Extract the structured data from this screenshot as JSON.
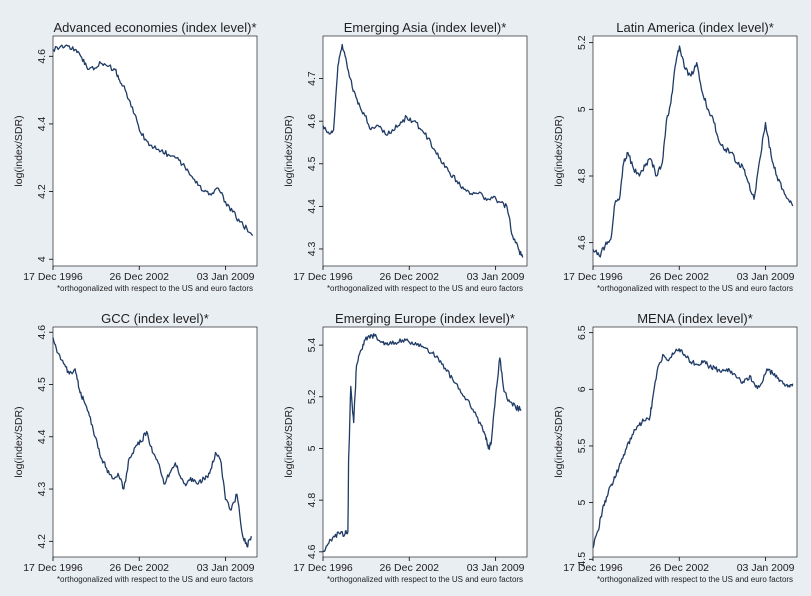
{
  "colors": {
    "page_bg": "#e9eef3",
    "plot_bg": "#ffffff",
    "line": "#1f3b66"
  },
  "chart_data": [
    {
      "type": "line",
      "title": "Advanced economies (index level)*",
      "ylabel": "log(index/SDR)",
      "note": "*orthogonalized with respect to the US and euro factors",
      "x_ticks": [
        "17 Dec 1996",
        "26 Dec 2002",
        "03 Jan 2009"
      ],
      "xlim": [
        1996.96,
        2011.2
      ],
      "y_ticks": [
        "4",
        "4.2",
        "4.4",
        "4.6"
      ],
      "ylim": [
        3.98,
        4.66
      ],
      "series": [
        {
          "x": [
            1996.96,
            1997.5,
            1998.0,
            1998.5,
            1998.9,
            1999.3,
            1999.8,
            2000.3,
            2000.8,
            2001.3,
            2001.6,
            2002.0,
            2002.5,
            2003.0,
            2003.5,
            2004.0,
            2004.5,
            2005.0,
            2005.5,
            2006.0,
            2006.5,
            2007.0,
            2007.5,
            2008.0,
            2008.5,
            2009.0,
            2009.5,
            2010.0,
            2010.5,
            2010.9
          ],
          "y": [
            4.62,
            4.63,
            4.63,
            4.62,
            4.6,
            4.57,
            4.56,
            4.58,
            4.57,
            4.56,
            4.53,
            4.5,
            4.45,
            4.38,
            4.35,
            4.33,
            4.32,
            4.31,
            4.3,
            4.28,
            4.25,
            4.23,
            4.2,
            4.19,
            4.21,
            4.17,
            4.14,
            4.11,
            4.09,
            4.07
          ]
        }
      ]
    },
    {
      "type": "line",
      "title": "Emerging Asia (index level)*",
      "ylabel": "log(index/SDR)",
      "note": "*orthogonalized with respect to the US and euro factors",
      "x_ticks": [
        "17 Dec 1996",
        "26 Dec 2002",
        "03 Jan 2009"
      ],
      "xlim": [
        1996.96,
        2011.2
      ],
      "y_ticks": [
        "4.3",
        "4.4",
        "4.5",
        "4.6",
        "4.7"
      ],
      "ylim": [
        4.26,
        4.8
      ],
      "series": [
        {
          "x": [
            1996.96,
            1997.4,
            1997.7,
            1998.0,
            1998.3,
            1998.6,
            1999.0,
            1999.4,
            1999.8,
            2000.3,
            2000.8,
            2001.3,
            2001.8,
            2002.3,
            2002.8,
            2003.3,
            2003.8,
            2004.3,
            2004.8,
            2005.3,
            2005.8,
            2006.3,
            2006.8,
            2007.3,
            2007.8,
            2008.3,
            2008.8,
            2009.3,
            2009.8,
            2010.2,
            2010.6,
            2010.9
          ],
          "y": [
            4.59,
            4.57,
            4.58,
            4.73,
            4.78,
            4.74,
            4.68,
            4.64,
            4.62,
            4.58,
            4.59,
            4.57,
            4.58,
            4.59,
            4.61,
            4.6,
            4.58,
            4.56,
            4.53,
            4.5,
            4.48,
            4.46,
            4.44,
            4.43,
            4.43,
            4.42,
            4.42,
            4.41,
            4.4,
            4.33,
            4.3,
            4.28
          ]
        }
      ]
    },
    {
      "type": "line",
      "title": "Latin America (index level)*",
      "ylabel": "log(index/SDR)",
      "note": "*orthogonalized with respect to the US and euro factors",
      "x_ticks": [
        "17 Dec 1996",
        "26 Dec 2002",
        "03 Jan 2009"
      ],
      "xlim": [
        1996.96,
        2011.2
      ],
      "y_ticks": [
        "4.6",
        "4.8",
        "5",
        "5.2"
      ],
      "ylim": [
        4.53,
        5.22
      ],
      "series": [
        {
          "x": [
            1996.96,
            1997.4,
            1997.8,
            1998.2,
            1998.5,
            1998.8,
            1999.1,
            1999.4,
            1999.8,
            2000.2,
            2000.6,
            2001.0,
            2001.4,
            2001.8,
            2002.1,
            2002.4,
            2002.7,
            2003.0,
            2003.4,
            2003.8,
            2004.2,
            2004.6,
            2005.0,
            2005.4,
            2005.8,
            2006.2,
            2006.6,
            2007.0,
            2007.4,
            2007.8,
            2008.2,
            2008.6,
            2009.0,
            2009.4,
            2009.8,
            2010.2,
            2010.6,
            2010.9
          ],
          "y": [
            4.58,
            4.56,
            4.59,
            4.61,
            4.72,
            4.73,
            4.84,
            4.87,
            4.82,
            4.8,
            4.83,
            4.85,
            4.8,
            4.84,
            4.97,
            5.02,
            5.13,
            5.19,
            5.12,
            5.1,
            5.14,
            5.05,
            5.0,
            4.96,
            4.9,
            4.88,
            4.87,
            4.84,
            4.83,
            4.78,
            4.73,
            4.85,
            4.96,
            4.86,
            4.8,
            4.76,
            4.73,
            4.71
          ]
        }
      ]
    },
    {
      "type": "line",
      "title": "GCC (index level)*",
      "ylabel": "log(index/SDR)",
      "note": "*orthogonalized with respect to the US and euro factors",
      "x_ticks": [
        "17 Dec 1996",
        "26 Dec 2002",
        "03 Jan 2009"
      ],
      "xlim": [
        1996.96,
        2011.2
      ],
      "y_ticks": [
        "4.2",
        "4.3",
        "4.4",
        "4.5",
        "4.6"
      ],
      "ylim": [
        4.17,
        4.61
      ],
      "series": [
        {
          "x": [
            1996.96,
            1997.3,
            1997.7,
            1998.1,
            1998.5,
            1998.8,
            1999.1,
            1999.5,
            1999.9,
            2000.3,
            2000.7,
            2001.1,
            2001.5,
            2001.9,
            2002.3,
            2002.7,
            2003.1,
            2003.5,
            2003.9,
            2004.3,
            2004.7,
            2005.1,
            2005.5,
            2005.9,
            2006.3,
            2006.7,
            2007.1,
            2007.5,
            2007.9,
            2008.3,
            2008.7,
            2009.0,
            2009.4,
            2009.8,
            2010.2,
            2010.5,
            2010.8
          ],
          "y": [
            4.59,
            4.56,
            4.54,
            4.52,
            4.53,
            4.49,
            4.47,
            4.44,
            4.4,
            4.36,
            4.34,
            4.32,
            4.33,
            4.3,
            4.36,
            4.38,
            4.39,
            4.41,
            4.37,
            4.35,
            4.31,
            4.33,
            4.35,
            4.32,
            4.31,
            4.32,
            4.31,
            4.32,
            4.33,
            4.37,
            4.35,
            4.28,
            4.26,
            4.29,
            4.21,
            4.19,
            4.21
          ]
        }
      ]
    },
    {
      "type": "line",
      "title": "Emerging Europe (index level)*",
      "ylabel": "log(index/SDR)",
      "note": "*orthogonalized with respect to the US and euro factors",
      "x_ticks": [
        "17 Dec 1996",
        "26 Dec 2002",
        "03 Jan 2009"
      ],
      "xlim": [
        1996.96,
        2011.2
      ],
      "y_ticks": [
        "4.6",
        "4.8",
        "5",
        "5.2",
        "5.4"
      ],
      "ylim": [
        4.58,
        5.47
      ],
      "series": [
        {
          "x": [
            1996.96,
            1997.3,
            1997.7,
            1998.1,
            1998.5,
            1998.7,
            1998.75,
            1998.9,
            1999.1,
            1999.3,
            1999.6,
            1999.9,
            2000.3,
            2000.7,
            2001.1,
            2001.5,
            2002.0,
            2002.5,
            2003.0,
            2003.5,
            2004.0,
            2004.5,
            2005.0,
            2005.5,
            2006.0,
            2006.5,
            2007.0,
            2007.5,
            2008.0,
            2008.3,
            2008.5,
            2008.7,
            2009.0,
            2009.3,
            2009.6,
            2010.0,
            2010.4,
            2010.8
          ],
          "y": [
            4.6,
            4.63,
            4.66,
            4.67,
            4.67,
            4.68,
            4.96,
            5.24,
            5.1,
            5.32,
            5.38,
            5.42,
            5.44,
            5.43,
            5.41,
            5.4,
            5.41,
            5.42,
            5.41,
            5.4,
            5.39,
            5.37,
            5.35,
            5.31,
            5.27,
            5.23,
            5.19,
            5.14,
            5.09,
            5.05,
            5.0,
            5.02,
            5.2,
            5.35,
            5.22,
            5.18,
            5.16,
            5.15
          ]
        }
      ]
    },
    {
      "type": "line",
      "title": "MENA (index level)*",
      "ylabel": "log(index/SDR)",
      "note": "*orthogonalized with respect to the US and euro factors",
      "x_ticks": [
        "17 Dec 1996",
        "26 Dec 2002",
        "03 Jan 2009"
      ],
      "xlim": [
        1996.96,
        2011.2
      ],
      "y_ticks": [
        "4.5",
        "5",
        "5.5",
        "6",
        "6.5"
      ],
      "ylim": [
        4.52,
        6.55
      ],
      "series": [
        {
          "x": [
            1996.96,
            1997.3,
            1997.6,
            1997.9,
            1998.2,
            1998.5,
            1998.9,
            1999.3,
            1999.7,
            2000.1,
            2000.5,
            2000.9,
            2001.1,
            2001.5,
            2001.9,
            2002.3,
            2002.7,
            2003.1,
            2003.5,
            2003.9,
            2004.3,
            2004.7,
            2005.1,
            2005.5,
            2005.9,
            2006.3,
            2006.7,
            2007.1,
            2007.5,
            2007.9,
            2008.3,
            2008.7,
            2009.1,
            2009.5,
            2009.9,
            2010.3,
            2010.7,
            2010.9
          ],
          "y": [
            4.6,
            4.75,
            4.92,
            5.05,
            5.15,
            5.22,
            5.35,
            5.48,
            5.6,
            5.68,
            5.72,
            5.73,
            5.9,
            6.2,
            6.3,
            6.27,
            6.33,
            6.35,
            6.28,
            6.24,
            6.22,
            6.25,
            6.2,
            6.18,
            6.15,
            6.18,
            6.13,
            6.1,
            6.06,
            6.12,
            6.02,
            6.05,
            6.18,
            6.14,
            6.1,
            6.05,
            6.02,
            6.05
          ]
        }
      ]
    }
  ]
}
